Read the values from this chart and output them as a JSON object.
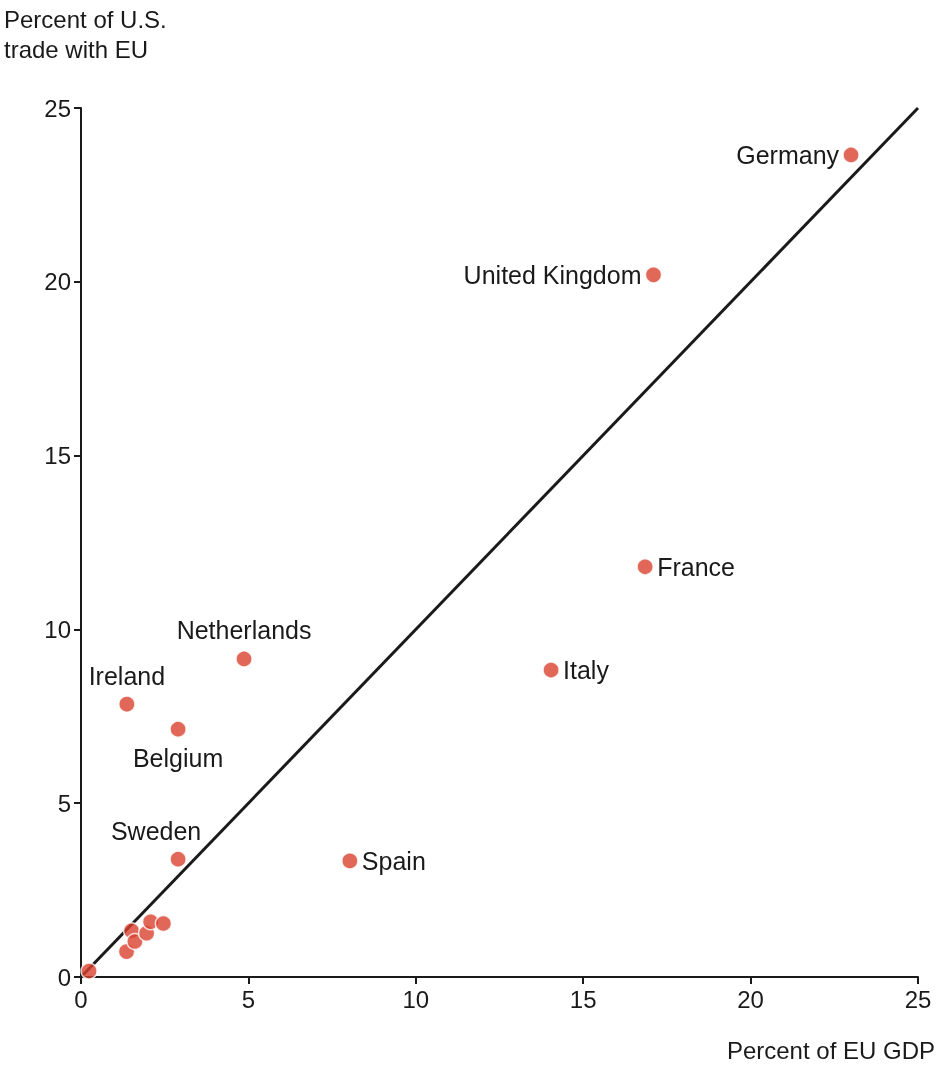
{
  "chart_data": {
    "type": "scatter",
    "xlabel": "Percent of EU GDP",
    "ylabel": "Percent of U.S.\ntrade with EU",
    "xlim": [
      0,
      25
    ],
    "ylim": [
      0,
      25
    ],
    "xticks": [
      0,
      5,
      10,
      15,
      20,
      25
    ],
    "yticks": [
      0,
      5,
      10,
      15,
      20,
      25
    ],
    "grid": false,
    "series": [
      {
        "color": "#d9412e",
        "marker": "circle",
        "x": [
          23.0,
          17.1,
          16.85,
          14.04,
          4.87,
          1.37,
          2.9,
          2.9,
          8.03,
          0.24,
          1.36,
          1.51,
          1.61,
          1.96,
          2.08,
          2.46
        ],
        "values": [
          23.65,
          20.2,
          11.8,
          8.83,
          9.15,
          7.85,
          7.13,
          3.39,
          3.34,
          0.17,
          0.73,
          1.33,
          1.02,
          1.26,
          1.59,
          1.54
        ]
      },
      {
        "type": "line",
        "color": "#1a1a1a",
        "line_style": "solid",
        "x": [
          0,
          25
        ],
        "values": [
          0,
          25
        ]
      }
    ],
    "annotations": [
      {
        "text": "Germany",
        "x": 23.0,
        "y": 23.65
      },
      {
        "text": "United Kingdom",
        "x": 17.1,
        "y": 20.2
      },
      {
        "text": "France",
        "x": 16.85,
        "y": 11.8
      },
      {
        "text": "Italy",
        "x": 14.04,
        "y": 8.83
      },
      {
        "text": "Netherlands",
        "x": 4.87,
        "y": 9.15
      },
      {
        "text": "Ireland",
        "x": 1.37,
        "y": 7.85
      },
      {
        "text": "Belgium",
        "x": 2.9,
        "y": 7.13
      },
      {
        "text": "Sweden",
        "x": 2.9,
        "y": 3.39
      },
      {
        "text": "Spain",
        "x": 8.03,
        "y": 3.34
      }
    ]
  }
}
